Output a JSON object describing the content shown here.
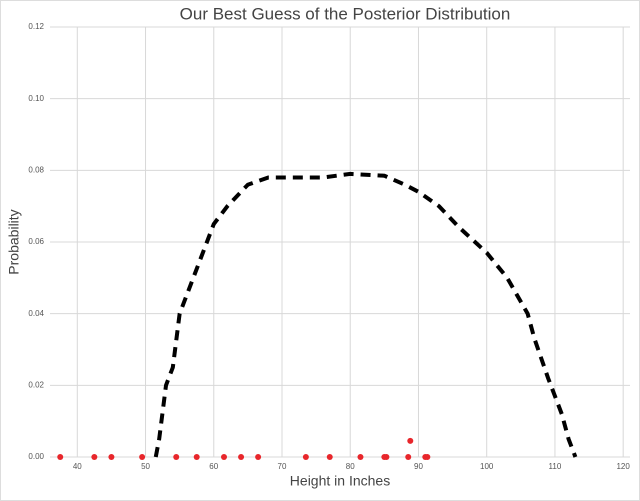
{
  "chart_data": {
    "type": "line",
    "title": "Our Best Guess of the Posterior Distribution",
    "x_label": "Height in Inches",
    "y_label": "Probability",
    "xlim": [
      36,
      121
    ],
    "ylim": [
      0,
      0.12
    ],
    "xticks": [
      40,
      50,
      60,
      70,
      80,
      90,
      100,
      110,
      120
    ],
    "yticks": [
      {
        "value": 0,
        "label": "0.00"
      },
      0.02,
      0.04,
      0.06,
      0.08,
      {
        "value": 0.1,
        "label": "0.10"
      },
      0.12
    ],
    "grid": true,
    "lines": [
      {
        "color": "#000000",
        "dashed": true,
        "x": [
          51.5,
          52,
          53,
          54,
          55,
          57,
          58,
          59,
          60,
          62,
          65,
          68,
          72,
          76,
          80,
          85,
          88,
          90,
          93,
          96,
          100,
          103,
          106,
          107,
          109,
          111,
          112,
          113
        ],
        "y": [
          0,
          0.005,
          0.02,
          0.025,
          0.04,
          0.05,
          0.055,
          0.06,
          0.065,
          0.07,
          0.076,
          0.078,
          0.078,
          0.078,
          0.079,
          0.0785,
          0.076,
          0.074,
          0.07,
          0.064,
          0.057,
          0.05,
          0.04,
          0.033,
          0.022,
          0.012,
          0.005,
          0
        ]
      }
    ],
    "points": {
      "color": "#e8262b",
      "x": [
        37.5,
        42.5,
        45,
        49.5,
        54.5,
        57.5,
        61.5,
        64,
        66.5,
        73.5,
        77,
        81.5,
        85,
        85.3,
        88.5,
        88.8,
        91,
        91.3
      ],
      "y": [
        0,
        0,
        0,
        0,
        0,
        0,
        0,
        0,
        0,
        0,
        0,
        0,
        0,
        0,
        0,
        0.0045,
        0,
        0
      ]
    }
  }
}
